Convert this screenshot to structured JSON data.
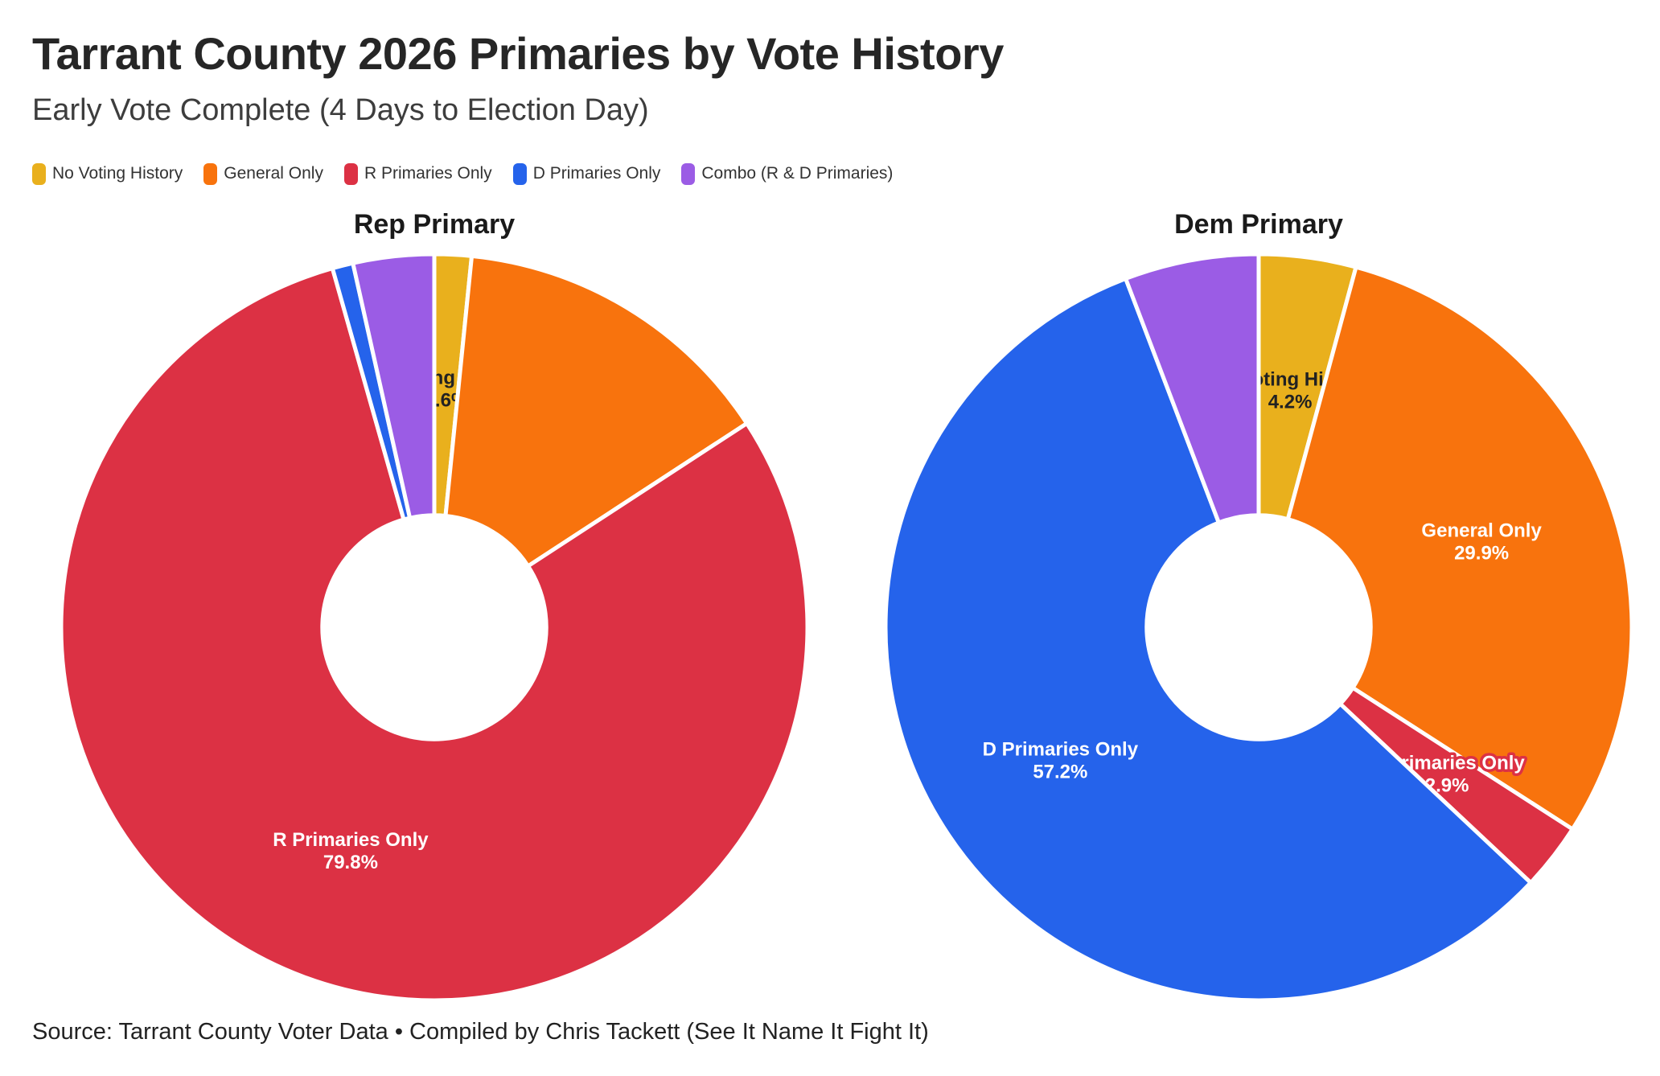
{
  "header": {
    "title": "Tarrant County 2026 Primaries by Vote History",
    "subtitle": "Early Vote Complete (4 Days to Election Day)"
  },
  "legend": {
    "items": [
      {
        "label": "No Voting History",
        "color": "#E9B01D"
      },
      {
        "label": "General Only",
        "color": "#F8730D"
      },
      {
        "label": "R Primaries Only",
        "color": "#DC3144"
      },
      {
        "label": "D Primaries Only",
        "color": "#2563EB"
      },
      {
        "label": "Combo (R & D Primaries)",
        "color": "#9B5CE5"
      }
    ]
  },
  "footer": {
    "source": "Source: Tarrant County Voter Data • Compiled by Chris Tackett (See It Name It Fight It)"
  },
  "chart_data": [
    {
      "type": "pie",
      "subtype": "donut",
      "title": "Rep Primary",
      "units": "%",
      "inner_ratio": 0.3,
      "start_angle_deg": -90,
      "slices": [
        {
          "label": "No Voting History",
          "value": 1.6,
          "color": "#E9B01D",
          "show_label": true,
          "label_fill": "#222222",
          "label_halo": "#E9B01D"
        },
        {
          "label": "General Only",
          "value": 14.2,
          "color": "#F8730D",
          "show_label": false
        },
        {
          "label": "R Primaries Only",
          "value": 79.8,
          "color": "#DC3144",
          "show_label": true,
          "label_fill": "#FFFFFF"
        },
        {
          "label": "D Primaries Only",
          "value": 0.9,
          "color": "#2563EB",
          "show_label": false
        },
        {
          "label": "Combo (R & D Primaries)",
          "value": 3.5,
          "color": "#9B5CE5",
          "show_label": false
        }
      ]
    },
    {
      "type": "pie",
      "subtype": "donut",
      "title": "Dem Primary",
      "units": "%",
      "inner_ratio": 0.3,
      "start_angle_deg": -90,
      "slices": [
        {
          "label": "No Voting History",
          "value": 4.2,
          "color": "#E9B01D",
          "show_label": true,
          "label_fill": "#222222",
          "label_halo": "#E9B01D"
        },
        {
          "label": "General Only",
          "value": 29.9,
          "color": "#F8730D",
          "show_label": true,
          "label_fill": "#FFFFFF"
        },
        {
          "label": "R Primaries Only",
          "value": 2.9,
          "color": "#DC3144",
          "show_label": true,
          "label_fill": "#FFFFFF",
          "label_halo": "#DC3144"
        },
        {
          "label": "D Primaries Only",
          "value": 57.2,
          "color": "#2563EB",
          "show_label": true,
          "label_fill": "#FFFFFF"
        },
        {
          "label": "Combo (R & D Primaries)",
          "value": 5.8,
          "color": "#9B5CE5",
          "show_label": false
        }
      ]
    }
  ]
}
